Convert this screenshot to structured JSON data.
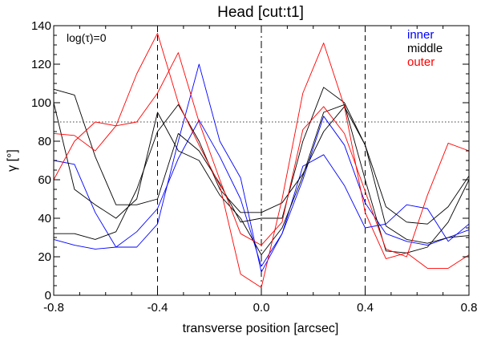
{
  "chart_data": {
    "type": "line",
    "title": "Head [cut:t1]",
    "xlabel": "transverse position [arcsec]",
    "ylabel": "γ [°]",
    "xlim": [
      -0.8,
      0.8
    ],
    "ylim": [
      0,
      140
    ],
    "xticks": [
      -0.8,
      -0.4,
      0.0,
      0.4,
      0.8
    ],
    "xtick_labels": [
      "-0.8",
      "-0.4",
      "0.0",
      "0.4",
      "0.8"
    ],
    "yticks": [
      0,
      20,
      40,
      60,
      80,
      100,
      120,
      140
    ],
    "ytick_labels": [
      "0",
      "20",
      "40",
      "60",
      "80",
      "100",
      "120",
      "140"
    ],
    "annotation": "log(τ)=0",
    "legend_position": "top-right",
    "reference_lines": {
      "vertical_dashed": [
        -0.4,
        0.4
      ],
      "vertical_dashdot": [
        0.0
      ],
      "horizontal_dotted": [
        90
      ]
    },
    "series": [
      {
        "name": "inner",
        "color": "#0000ff",
        "group": "inner",
        "x": [
          -0.8,
          -0.72,
          -0.64,
          -0.56,
          -0.48,
          -0.4,
          -0.32,
          -0.24,
          -0.16,
          -0.08,
          0.0,
          0.08,
          0.16,
          0.24,
          0.32,
          0.4,
          0.48,
          0.56,
          0.64,
          0.72,
          0.8
        ],
        "y": [
          70,
          68,
          43,
          25,
          25,
          37,
          80,
          120,
          80,
          61,
          12,
          32,
          67,
          73,
          57,
          35,
          37,
          47,
          45,
          28,
          37
        ]
      },
      {
        "name": "",
        "color": "#0000ff",
        "group": "inner",
        "x": [
          -0.8,
          -0.72,
          -0.64,
          -0.56,
          -0.48,
          -0.4,
          -0.32,
          -0.24,
          -0.16,
          -0.08,
          0.0,
          0.08,
          0.16,
          0.24,
          0.32,
          0.4,
          0.48,
          0.56,
          0.64,
          0.72,
          0.8
        ],
        "y": [
          29,
          26,
          24,
          25,
          33,
          45,
          71,
          91,
          72,
          50,
          15,
          32,
          60,
          93,
          78,
          48,
          32,
          28,
          26,
          30,
          34
        ]
      },
      {
        "name": "middle",
        "color": "#000000",
        "group": "middle",
        "x": [
          -0.8,
          -0.72,
          -0.64,
          -0.56,
          -0.48,
          -0.4,
          -0.32,
          -0.24,
          -0.16,
          -0.08,
          0.0,
          0.08,
          0.16,
          0.24,
          0.32,
          0.4,
          0.48,
          0.56,
          0.64,
          0.72,
          0.8
        ],
        "y": [
          107,
          104,
          72,
          47,
          47,
          50,
          84,
          75,
          58,
          38,
          40,
          40,
          80,
          108,
          100,
          78,
          46,
          38,
          37,
          46,
          62
        ]
      },
      {
        "name": "",
        "color": "#000000",
        "group": "middle",
        "x": [
          -0.8,
          -0.72,
          -0.64,
          -0.56,
          -0.48,
          -0.4,
          -0.32,
          -0.24,
          -0.16,
          -0.08,
          0.0,
          0.08,
          0.16,
          0.24,
          0.32,
          0.4,
          0.48,
          0.56,
          0.64,
          0.72,
          0.8
        ],
        "y": [
          32,
          32,
          29,
          33,
          55,
          85,
          99,
          80,
          55,
          43,
          43,
          48,
          63,
          85,
          98,
          78,
          36,
          29,
          27,
          30,
          31
        ]
      },
      {
        "name": "",
        "color": "#000000",
        "group": "middle",
        "x": [
          -0.8,
          -0.72,
          -0.64,
          -0.56,
          -0.48,
          -0.4,
          -0.32,
          -0.24,
          -0.16,
          -0.08,
          0.0,
          0.08,
          0.16,
          0.24,
          0.32,
          0.4,
          0.48,
          0.56,
          0.64,
          0.72,
          0.8
        ],
        "y": [
          100,
          55,
          47,
          40,
          50,
          95,
          75,
          70,
          52,
          40,
          21,
          35,
          62,
          95,
          99,
          60,
          23,
          22,
          25,
          38,
          60
        ]
      },
      {
        "name": "outer",
        "color": "#ff0000",
        "group": "outer",
        "x": [
          -0.8,
          -0.72,
          -0.64,
          -0.56,
          -0.48,
          -0.4,
          -0.32,
          -0.24,
          -0.16,
          -0.08,
          0.0,
          0.08,
          0.16,
          0.24,
          0.32,
          0.4,
          0.48,
          0.56,
          0.64,
          0.72,
          0.8
        ],
        "y": [
          84,
          83,
          75,
          88,
          115,
          136,
          100,
          78,
          57,
          11,
          4,
          50,
          105,
          131,
          98,
          43,
          19,
          22,
          14,
          14,
          21
        ]
      },
      {
        "name": "",
        "color": "#ff0000",
        "group": "outer",
        "x": [
          -0.8,
          -0.72,
          -0.64,
          -0.56,
          -0.48,
          -0.4,
          -0.32,
          -0.24,
          -0.16,
          -0.08,
          0.0,
          0.08,
          0.16,
          0.24,
          0.32,
          0.4,
          0.48,
          0.56,
          0.64,
          0.72,
          0.8
        ],
        "y": [
          60,
          80,
          90,
          88,
          90,
          105,
          126,
          90,
          60,
          32,
          26,
          38,
          86,
          98,
          84,
          54,
          24,
          20,
          52,
          79,
          75
        ]
      }
    ]
  }
}
